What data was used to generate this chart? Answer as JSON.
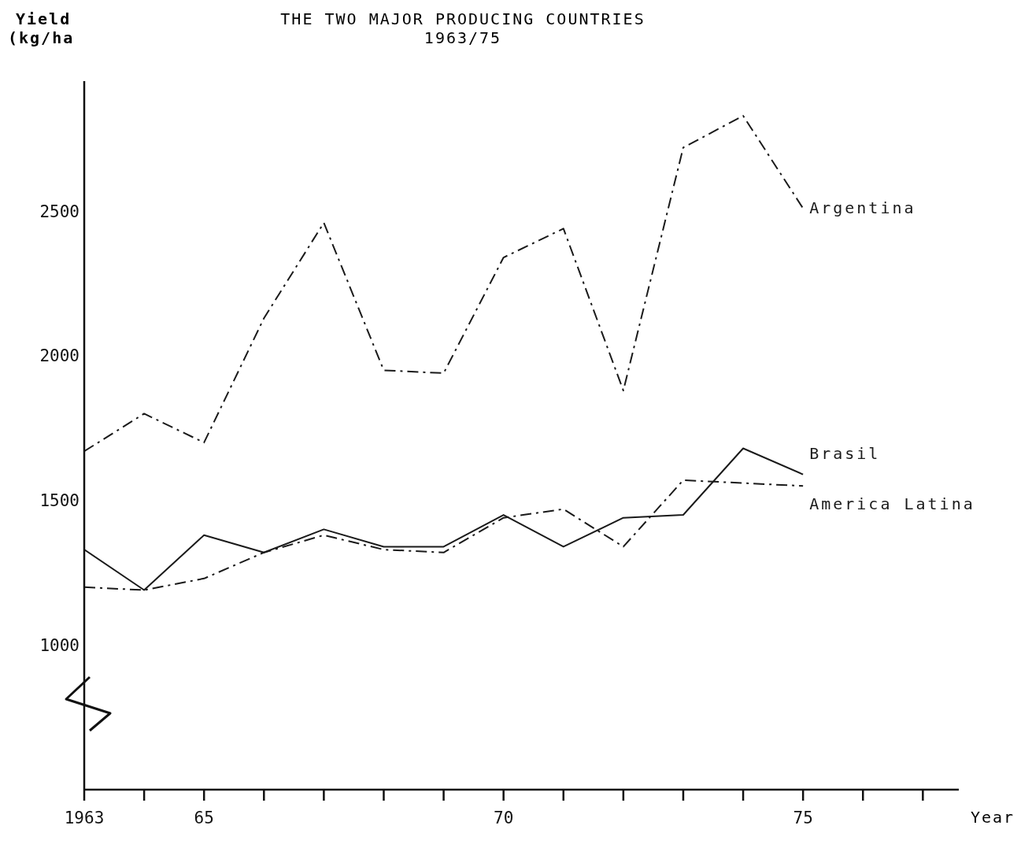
{
  "chart_data": {
    "type": "line",
    "title": "THE TWO MAJOR PRODUCING COUNTRIES",
    "subtitle": "1963/75",
    "xlabel": "Year",
    "ylabel": "Yield (kg/ha",
    "x": [
      1963,
      1964,
      1965,
      1966,
      1967,
      1968,
      1969,
      1970,
      1971,
      1972,
      1973,
      1974,
      1975
    ],
    "series": [
      {
        "name": "Argentina",
        "color": "#1a1a1a",
        "line_style": "dashed",
        "values": [
          1670,
          1800,
          1700,
          2130,
          2460,
          1950,
          1940,
          2340,
          2440,
          1880,
          2720,
          2830,
          2510
        ]
      },
      {
        "name": "Brasil",
        "color": "#1a1a1a",
        "line_style": "solid",
        "values": [
          1330,
          1190,
          1380,
          1320,
          1400,
          1340,
          1340,
          1450,
          1340,
          1440,
          1450,
          1680,
          1590
        ]
      },
      {
        "name": "America Latina",
        "color": "#1a1a1a",
        "line_style": "dashed",
        "values": [
          1200,
          1190,
          1230,
          1320,
          1380,
          1330,
          1320,
          1440,
          1470,
          1340,
          1570,
          1560,
          1550
        ]
      }
    ],
    "xlim": [
      1963,
      1977.6
    ],
    "xticks": [
      {
        "value": 1963,
        "label": "1963"
      },
      {
        "value": 1964,
        "label": null
      },
      {
        "value": 1965,
        "label": "65"
      },
      {
        "value": 1966,
        "label": null
      },
      {
        "value": 1967,
        "label": null
      },
      {
        "value": 1968,
        "label": null
      },
      {
        "value": 1969,
        "label": null
      },
      {
        "value": 1970,
        "label": "70"
      },
      {
        "value": 1971,
        "label": null
      },
      {
        "value": 1972,
        "label": null
      },
      {
        "value": 1973,
        "label": null
      },
      {
        "value": 1974,
        "label": null
      },
      {
        "value": 1975,
        "label": "75"
      },
      {
        "value": 1976,
        "label": null
      },
      {
        "value": 1977,
        "label": null
      }
    ],
    "ylim": [
      500,
      2950
    ],
    "yticks": [
      1000,
      1500,
      2000,
      2500
    ],
    "grid": false,
    "legend": false,
    "marker": "none"
  }
}
